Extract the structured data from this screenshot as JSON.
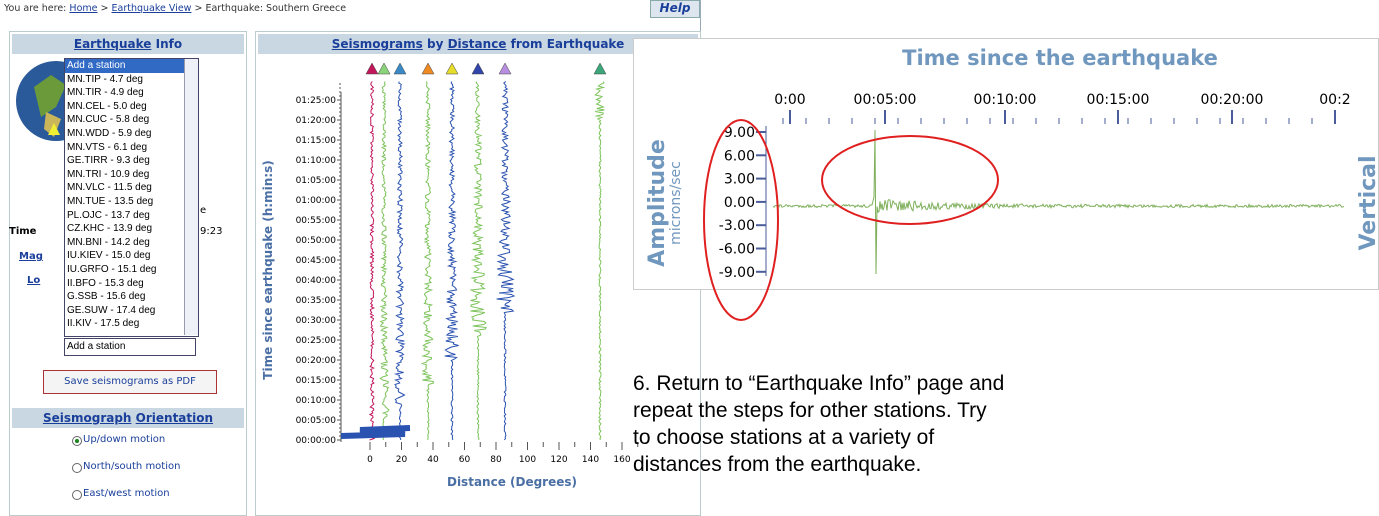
{
  "breadcrumb": {
    "prefix": "You are here:",
    "links": [
      "Home",
      "Earthquake View"
    ],
    "current": "Earthquake: Southern Greece",
    "separator": ">"
  },
  "help": "Help",
  "info_panel": {
    "title_link": "Earthquake",
    "title_rest": "Info",
    "stations": [
      "Add a station",
      "MN.TIP - 4.7 deg",
      "MN.TIR - 4.9 deg",
      "MN.CEL - 5.0 deg",
      "MN.CUC - 5.8 deg",
      "MN.WDD - 5.9 deg",
      "MN.VTS - 6.1 deg",
      "GE.TIRR - 9.3 deg",
      "MN.TRI - 10.9 deg",
      "MN.VLC - 11.5 deg",
      "MN.TUE - 13.5 deg",
      "PL.OJC - 13.7 deg",
      "CZ.KHC - 13.9 deg",
      "MN.BNI - 14.2 deg",
      "IU.KIEV - 15.0 deg",
      "IU.GRFO - 15.1 deg",
      "II.BFO - 15.3 deg",
      "G.SSB - 15.6 deg",
      "GE.SUW - 17.4 deg",
      "II.KIV - 17.5 deg"
    ],
    "partial_labels": [
      "Time",
      "Mag",
      "Lo"
    ],
    "partial_values": [
      "e",
      "9:23"
    ],
    "select": "Add a station",
    "pdf_button": "Save seismograms as PDF",
    "orientation": {
      "title_links": [
        "Seismograph",
        "Orientation"
      ],
      "options": [
        "Up/down motion",
        "North/south motion",
        "East/west motion"
      ]
    }
  },
  "seismogram_panel": {
    "title_links": [
      "Seismograms",
      "Distance"
    ],
    "title_words": [
      "by",
      "from Earthquake"
    ],
    "y_label": "Time since earthquake (h:min:s)",
    "y_ticks": [
      "00:00:00",
      "00:05:00",
      "00:10:00",
      "00:15:00",
      "00:20:00",
      "00:25:00",
      "00:30:00",
      "00:35:00",
      "00:40:00",
      "00:45:00",
      "00:50:00",
      "00:55:00",
      "01:00:00",
      "01:05:00",
      "01:10:00",
      "01:15:00",
      "01:20:00",
      "01:25:00"
    ],
    "x_ticks": [
      0,
      20,
      40,
      60,
      80,
      100,
      120,
      140,
      160
    ],
    "x_label": "Distance (Degrees)"
  },
  "zoom": {
    "title": "Time since the earthquake",
    "x_ticks": [
      "0:00",
      "00:05:00",
      "00:10:00",
      "00:15:00",
      "00:20:00",
      "00:2"
    ],
    "y_ticks": [
      "9.00",
      "6.00",
      "3.00",
      "0.00",
      "-3.00",
      "-6.00",
      "-9.00"
    ],
    "y_label": "Amplitude",
    "y_unit": "microns/sec",
    "component": "Vertical"
  },
  "instruction": [
    "6. Return to “Earthquake Info” page and",
    "repeat the steps for other stations. Try",
    "to choose stations at a variety of",
    "distances from the earthquake."
  ]
}
